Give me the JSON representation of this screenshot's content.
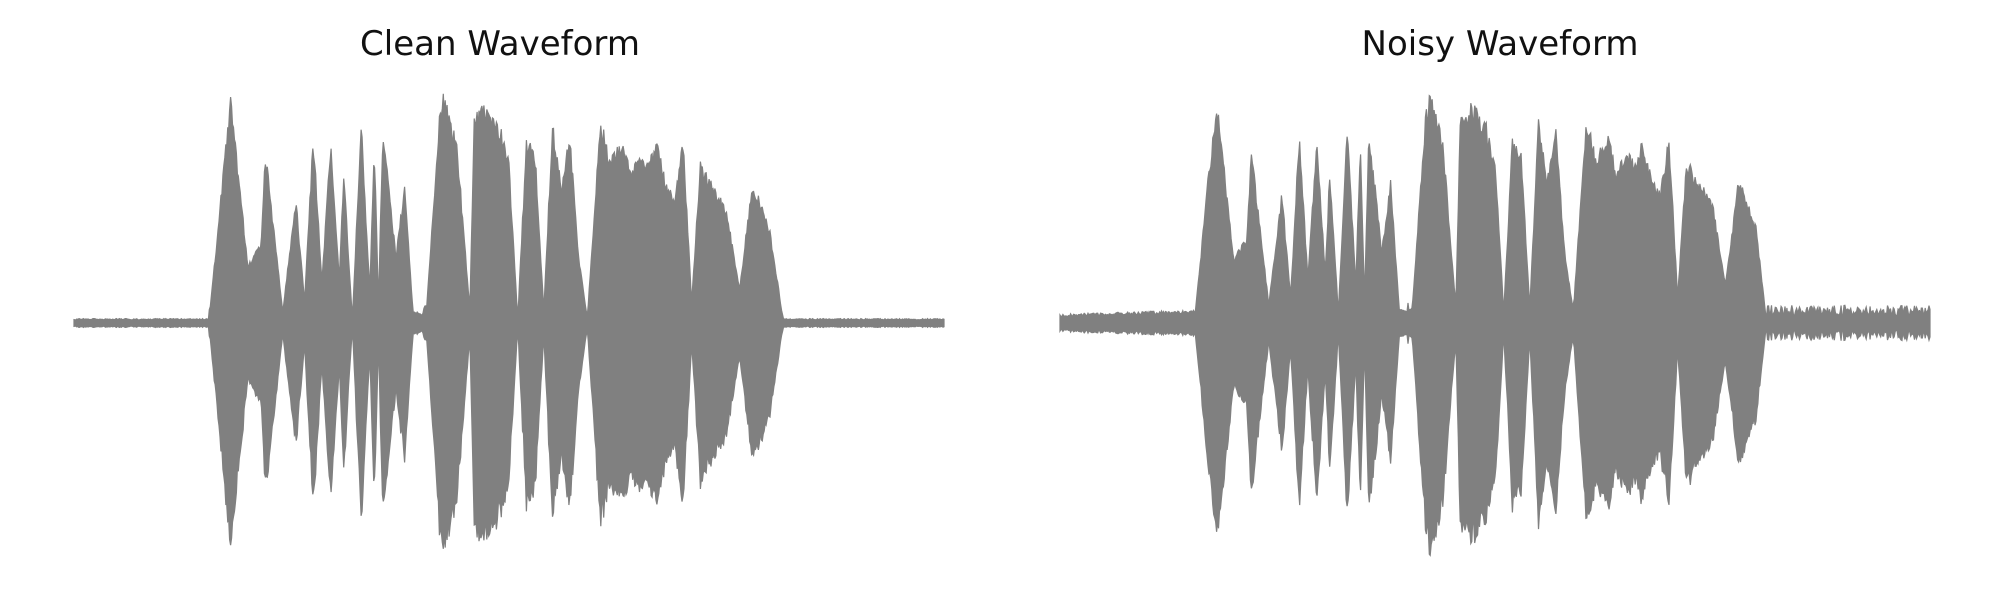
{
  "chart_data": [
    {
      "type": "area",
      "title": "Clean Waveform",
      "xlabel": "",
      "ylabel": "",
      "axes_visible": false,
      "grid": false,
      "color": "#808080",
      "ylim": [
        -1,
        1
      ],
      "envelope": {
        "x": [
          0.0,
          0.155,
          0.16,
          0.17,
          0.18,
          0.2,
          0.215,
          0.22,
          0.24,
          0.255,
          0.265,
          0.275,
          0.285,
          0.295,
          0.305,
          0.31,
          0.32,
          0.33,
          0.34,
          0.345,
          0.35,
          0.355,
          0.37,
          0.38,
          0.39,
          0.4,
          0.405,
          0.42,
          0.425,
          0.44,
          0.455,
          0.46,
          0.475,
          0.49,
          0.5,
          0.51,
          0.52,
          0.53,
          0.54,
          0.55,
          0.56,
          0.57,
          0.58,
          0.59,
          0.605,
          0.615,
          0.63,
          0.64,
          0.65,
          0.66,
          0.67,
          0.68,
          0.69,
          0.7,
          0.71,
          0.72,
          0.735,
          0.75,
          0.765,
          0.78,
          0.8,
          0.81,
          0.815,
          1.0
        ],
        "y": [
          0.01,
          0.01,
          0.2,
          0.6,
          0.98,
          0.25,
          0.35,
          0.75,
          0.05,
          0.55,
          0.1,
          0.82,
          0.18,
          0.8,
          0.2,
          0.66,
          0.02,
          0.88,
          0.15,
          0.8,
          0.1,
          0.85,
          0.3,
          0.6,
          0.03,
          0.02,
          0.05,
          0.9,
          1.0,
          0.8,
          0.05,
          0.92,
          0.95,
          0.85,
          0.7,
          0.02,
          0.8,
          0.74,
          0.06,
          0.88,
          0.6,
          0.83,
          0.3,
          0.02,
          0.9,
          0.72,
          0.8,
          0.65,
          0.75,
          0.7,
          0.78,
          0.62,
          0.55,
          0.8,
          0.1,
          0.7,
          0.6,
          0.5,
          0.15,
          0.62,
          0.4,
          0.15,
          0.01,
          0.01
        ]
      }
    },
    {
      "type": "area",
      "title": "Noisy Waveform",
      "xlabel": "",
      "ylabel": "",
      "axes_visible": false,
      "grid": false,
      "color": "#808080",
      "ylim": [
        -1,
        1
      ],
      "envelope": {
        "x": [
          0.0,
          0.155,
          0.16,
          0.17,
          0.18,
          0.2,
          0.215,
          0.22,
          0.24,
          0.255,
          0.265,
          0.275,
          0.285,
          0.295,
          0.305,
          0.31,
          0.32,
          0.33,
          0.34,
          0.345,
          0.35,
          0.355,
          0.37,
          0.38,
          0.39,
          0.4,
          0.405,
          0.42,
          0.425,
          0.44,
          0.455,
          0.46,
          0.475,
          0.49,
          0.5,
          0.51,
          0.52,
          0.53,
          0.54,
          0.55,
          0.56,
          0.57,
          0.58,
          0.59,
          0.605,
          0.615,
          0.63,
          0.64,
          0.65,
          0.66,
          0.67,
          0.68,
          0.69,
          0.7,
          0.71,
          0.72,
          0.735,
          0.75,
          0.765,
          0.78,
          0.8,
          0.81,
          0.815,
          1.0
        ],
        "y": [
          0.02,
          0.03,
          0.22,
          0.62,
          0.98,
          0.28,
          0.38,
          0.76,
          0.08,
          0.57,
          0.12,
          0.82,
          0.2,
          0.8,
          0.22,
          0.67,
          0.05,
          0.88,
          0.17,
          0.8,
          0.12,
          0.85,
          0.32,
          0.62,
          0.06,
          0.05,
          0.07,
          0.9,
          1.0,
          0.81,
          0.07,
          0.92,
          0.95,
          0.86,
          0.72,
          0.05,
          0.8,
          0.75,
          0.08,
          0.88,
          0.62,
          0.84,
          0.32,
          0.05,
          0.9,
          0.73,
          0.81,
          0.66,
          0.76,
          0.71,
          0.79,
          0.63,
          0.57,
          0.81,
          0.12,
          0.71,
          0.62,
          0.52,
          0.17,
          0.63,
          0.42,
          0.08,
          0.07,
          0.06
        ]
      }
    }
  ]
}
